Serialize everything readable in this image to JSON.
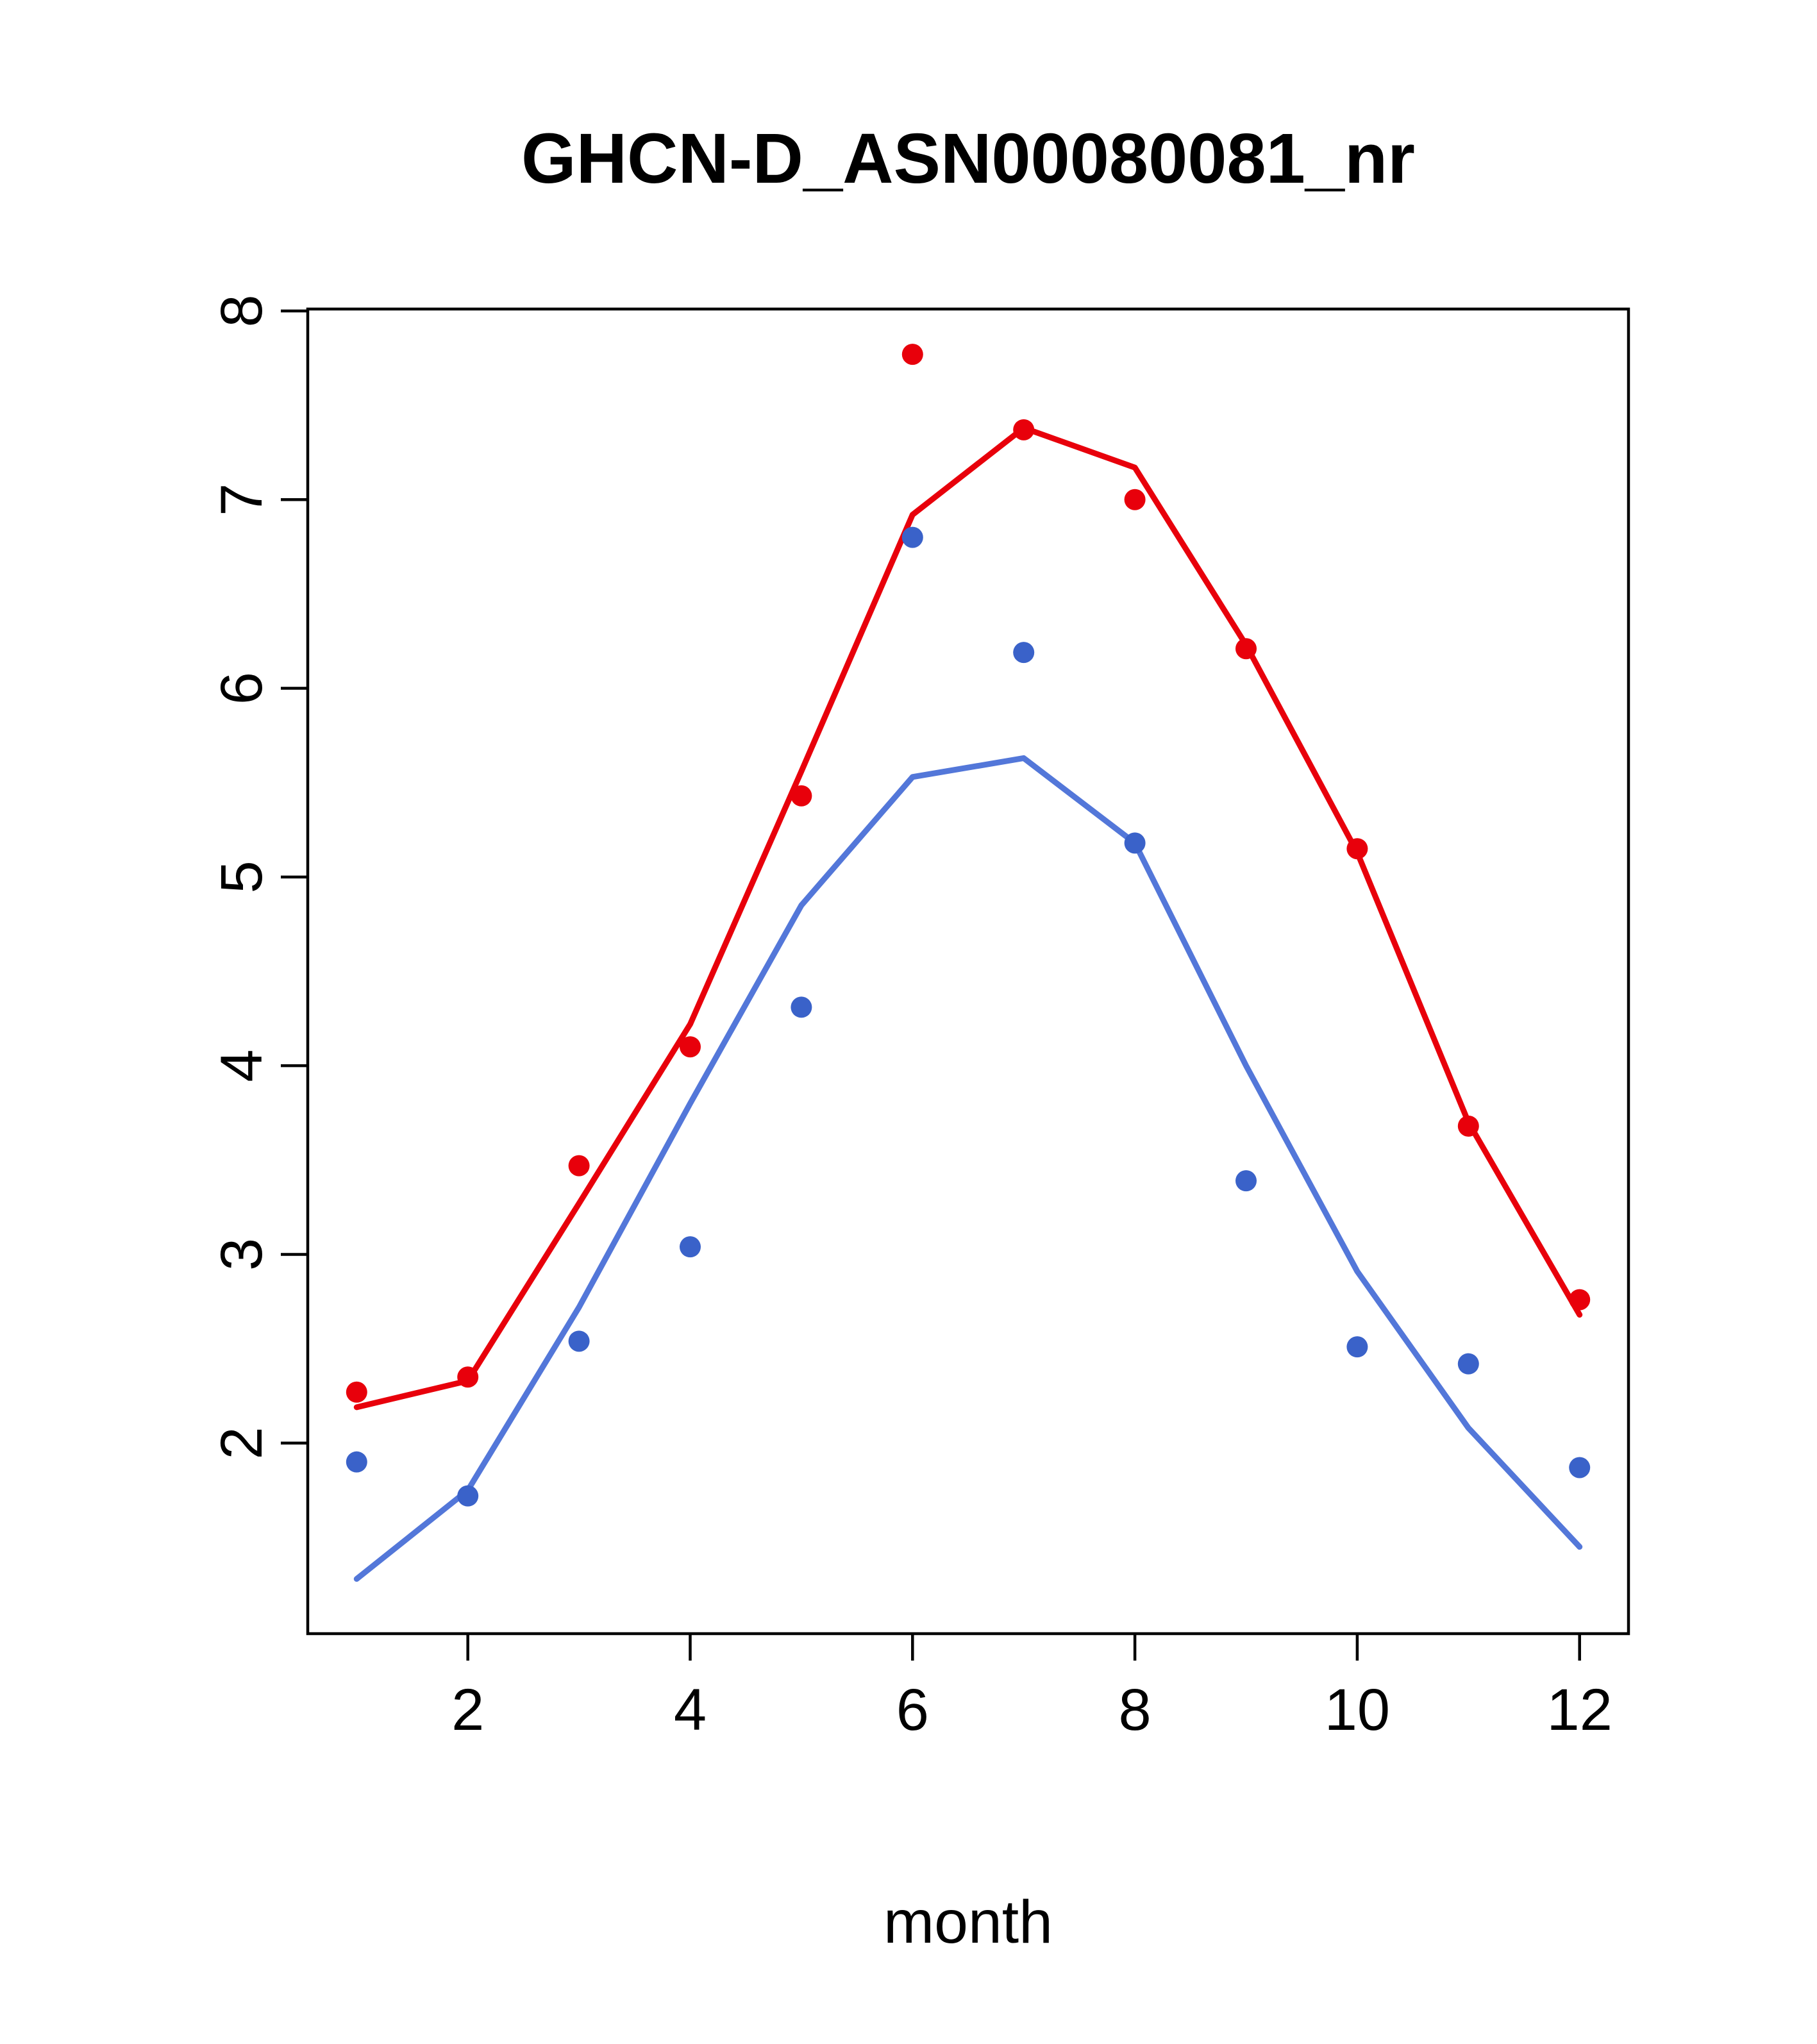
{
  "chart_data": {
    "type": "line",
    "title": "GHCN-D_ASN00080081_nr",
    "xlabel": "month",
    "ylabel": "",
    "grid": false,
    "legend_position": "none",
    "x": [
      1,
      2,
      3,
      4,
      5,
      6,
      7,
      8,
      9,
      10,
      11,
      12
    ],
    "xticks": [
      2,
      4,
      6,
      8,
      10,
      12
    ],
    "yticks": [
      2,
      3,
      4,
      5,
      6,
      7,
      8
    ],
    "xlim": [
      0.56,
      12.44
    ],
    "ylim": [
      0.99,
      8.01
    ],
    "colors": {
      "red": "#e8000b",
      "blue": "#3a62c9",
      "blue_line": "#5377d9",
      "axis": "#000000"
    },
    "series": [
      {
        "name": "red-line",
        "type": "line",
        "color": "#e8000b",
        "values": [
          2.19,
          2.33,
          3.27,
          4.22,
          5.56,
          6.92,
          7.38,
          7.17,
          6.23,
          5.13,
          3.7,
          2.68
        ]
      },
      {
        "name": "blue-line",
        "type": "line",
        "color": "#5377d9",
        "values": [
          1.28,
          1.75,
          2.72,
          3.8,
          4.85,
          5.53,
          5.63,
          5.18,
          4.0,
          2.91,
          2.08,
          1.45
        ]
      },
      {
        "name": "red-points",
        "type": "scatter",
        "color": "#e8000b",
        "values": [
          2.27,
          2.35,
          3.47,
          4.1,
          5.43,
          7.77,
          7.37,
          7.0,
          6.21,
          5.15,
          3.68,
          2.76
        ]
      },
      {
        "name": "blue-points",
        "type": "scatter",
        "color": "#3a62c9",
        "values": [
          1.9,
          1.72,
          2.54,
          3.04,
          4.31,
          6.8,
          6.19,
          5.18,
          3.39,
          2.51,
          2.42,
          1.87
        ]
      }
    ]
  }
}
